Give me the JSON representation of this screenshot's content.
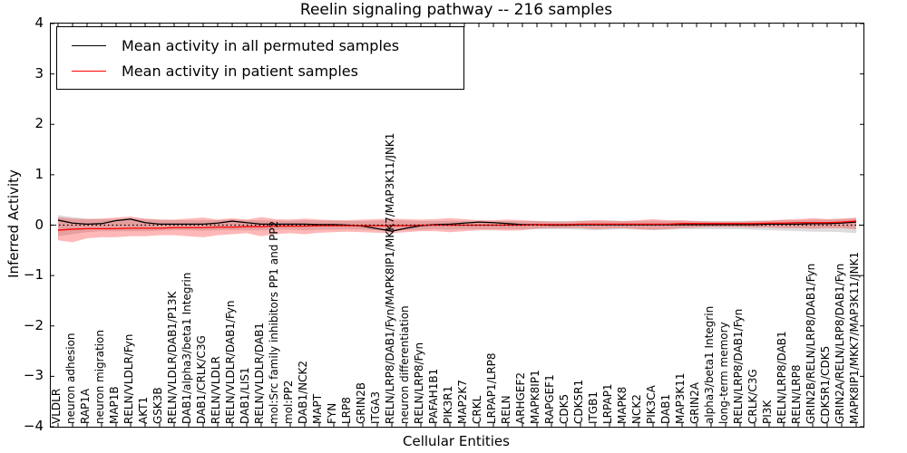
{
  "chart_data": {
    "type": "line",
    "title": "Reelin signaling pathway -- 216 samples",
    "xlabel": "Cellular Entities",
    "ylabel": "Inferred Activity",
    "ylim": [
      -4,
      4
    ],
    "y_ticks": [
      "4",
      "3",
      "2",
      "1",
      "0",
      "-1",
      "-2",
      "-3",
      "-4"
    ],
    "grid": false,
    "legend": {
      "position": "upper left",
      "entries": [
        {
          "label": "Mean activity in all permuted samples",
          "color": "#000000"
        },
        {
          "label": "Mean activity in patient samples",
          "color": "#ff0000"
        }
      ]
    },
    "zero_line": {
      "value": 0,
      "style": "dotted",
      "color": "#000000"
    },
    "categories": [
      "VLDLR",
      "neuron adhesion",
      "RAP1A",
      "neuron migration",
      "MAP1B",
      "RELN/VLDLR/Fyn",
      "AKT1",
      "GSK3B",
      "RELN/VLDLR/DAB1/P13K",
      "DAB1/alpha3/beta1 Integrin",
      "DAB1/CRLK/C3G",
      "RELN/VLDLR",
      "RELN/VLDLR/DAB1/Fyn",
      "DAB1/LIS1",
      "RELN/VLDLR/DAB1",
      "mol:Src family inhibitors PP1 and PP2",
      "mol:PP2",
      "DAB1/NCK2",
      "MAPT",
      "FYN",
      "LRP8",
      "GRIN2B",
      "ITGA3",
      "RELN/LRP8/DAB1/Fyn/MAPK8IP1/MKK7/MAP3K11/JNK1",
      "neuron differentiation",
      "RELN/LRP8/Fyn",
      "PAFAH1B1",
      "PIK3R1",
      "MAP2K7",
      "CRKL",
      "LRPAP1/LRP8",
      "RELN",
      "ARHGEF2",
      "MAPK8IP1",
      "RAPGEF1",
      "CDK5",
      "CDK5R1",
      "ITGB1",
      "LRPAP1",
      "MAPK8",
      "NCK2",
      "PIK3CA",
      "DAB1",
      "MAP3K11",
      "GRIN2A",
      "alpha3/beta1 Integrin",
      "long-term memory",
      "RELN/LRP8/DAB1/Fyn",
      "CRLK/C3G",
      "PI3K",
      "RELN/LRP8/DAB1",
      "RELN/LRP8",
      "GRIN2B/RELN/LRP8/DAB1/Fyn",
      "CDK5R1/CDK5",
      "GRIN2A/RELN/LRP8/DAB1/Fyn",
      "MAPK8IP1/MKK7/MAP3K11/JNK1"
    ],
    "series": [
      {
        "name": "Mean activity in all permuted samples",
        "color": "#000000",
        "values": [
          0.1,
          0.04,
          0.02,
          0.03,
          0.09,
          0.12,
          0.05,
          0.02,
          0.02,
          0.02,
          0.02,
          0.04,
          0.08,
          0.05,
          0.02,
          0.02,
          0.02,
          0.02,
          0.01,
          0.01,
          0.0,
          -0.02,
          -0.07,
          -0.12,
          -0.06,
          -0.01,
          0.01,
          0.02,
          0.04,
          0.06,
          0.05,
          0.03,
          0.01,
          0.01,
          0.0,
          0.0,
          0.01,
          0.01,
          0.01,
          0.01,
          0.01,
          0.01,
          0.01,
          0.01,
          0.01,
          0.01,
          0.01,
          0.01,
          0.01,
          0.02,
          0.02,
          0.02,
          0.03,
          0.03,
          0.04,
          0.06
        ]
      },
      {
        "name": "Mean activity in patient samples",
        "color": "#ff0000",
        "values": [
          -0.1,
          -0.08,
          -0.07,
          -0.07,
          -0.07,
          -0.06,
          -0.06,
          -0.06,
          -0.05,
          -0.05,
          -0.05,
          -0.04,
          -0.04,
          -0.03,
          -0.03,
          -0.02,
          -0.02,
          -0.02,
          -0.01,
          -0.01,
          -0.01,
          -0.01,
          -0.01,
          -0.01,
          -0.01,
          0.0,
          0.0,
          0.0,
          0.0,
          0.0,
          0.0,
          0.0,
          0.0,
          0.01,
          0.01,
          0.01,
          0.02,
          0.02,
          0.02,
          0.02,
          0.02,
          0.02,
          0.02,
          0.03,
          0.03,
          0.03,
          0.03,
          0.03,
          0.03,
          0.04,
          0.04,
          0.05,
          0.05,
          0.05,
          0.06,
          0.08
        ]
      }
    ],
    "bands": [
      {
        "name": "permuted-activity-range",
        "color": "rgba(128,128,128,0.28)",
        "upper": [
          0.2,
          0.16,
          0.13,
          0.12,
          0.12,
          0.13,
          0.12,
          0.11,
          0.1,
          0.1,
          0.1,
          0.1,
          0.11,
          0.1,
          0.1,
          0.09,
          0.09,
          0.1,
          0.09,
          0.09,
          0.08,
          0.08,
          0.09,
          0.1,
          0.09,
          0.08,
          0.08,
          0.09,
          0.08,
          0.08,
          0.08,
          0.08,
          0.08,
          0.08,
          0.08,
          0.08,
          0.09,
          0.09,
          0.09,
          0.08,
          0.08,
          0.09,
          0.08,
          0.08,
          0.08,
          0.08,
          0.08,
          0.08,
          0.09,
          0.09,
          0.1,
          0.1,
          0.11,
          0.11,
          0.12,
          0.13
        ],
        "lower": [
          -0.22,
          -0.18,
          -0.14,
          -0.12,
          -0.12,
          -0.12,
          -0.12,
          -0.11,
          -0.1,
          -0.1,
          -0.11,
          -0.1,
          -0.1,
          -0.1,
          -0.1,
          -0.09,
          -0.09,
          -0.1,
          -0.09,
          -0.09,
          -0.08,
          -0.09,
          -0.1,
          -0.11,
          -0.1,
          -0.09,
          -0.08,
          -0.09,
          -0.08,
          -0.08,
          -0.08,
          -0.08,
          -0.08,
          -0.08,
          -0.08,
          -0.08,
          -0.09,
          -0.1,
          -0.09,
          -0.08,
          -0.09,
          -0.1,
          -0.09,
          -0.08,
          -0.08,
          -0.08,
          -0.08,
          -0.08,
          -0.09,
          -0.1,
          -0.11,
          -0.12,
          -0.13,
          -0.13,
          -0.14,
          -0.16
        ]
      },
      {
        "name": "patient-activity-range",
        "color": "rgba(255,20,20,0.30)",
        "upper": [
          0.16,
          0.13,
          0.12,
          0.13,
          0.15,
          0.17,
          0.13,
          0.11,
          0.11,
          0.13,
          0.15,
          0.11,
          0.14,
          0.11,
          0.16,
          0.12,
          0.11,
          0.13,
          0.11,
          0.1,
          0.1,
          0.11,
          0.12,
          0.13,
          0.12,
          0.11,
          0.12,
          0.14,
          0.12,
          0.1,
          0.1,
          0.11,
          0.1,
          0.08,
          0.07,
          0.07,
          0.08,
          0.1,
          0.09,
          0.08,
          0.1,
          0.12,
          0.1,
          0.1,
          0.08,
          0.07,
          0.07,
          0.07,
          0.08,
          0.09,
          0.11,
          0.12,
          0.14,
          0.12,
          0.13,
          0.15
        ],
        "lower": [
          -0.3,
          -0.34,
          -0.26,
          -0.24,
          -0.24,
          -0.22,
          -0.22,
          -0.2,
          -0.2,
          -0.22,
          -0.24,
          -0.2,
          -0.18,
          -0.16,
          -0.22,
          -0.18,
          -0.16,
          -0.18,
          -0.15,
          -0.14,
          -0.13,
          -0.14,
          -0.15,
          -0.16,
          -0.14,
          -0.12,
          -0.12,
          -0.14,
          -0.12,
          -0.1,
          -0.1,
          -0.11,
          -0.1,
          -0.07,
          -0.06,
          -0.06,
          -0.06,
          -0.08,
          -0.07,
          -0.06,
          -0.08,
          -0.09,
          -0.08,
          -0.06,
          -0.05,
          -0.04,
          -0.04,
          -0.04,
          -0.05,
          -0.05,
          -0.06,
          -0.06,
          -0.07,
          -0.06,
          -0.06,
          -0.08
        ]
      }
    ]
  }
}
